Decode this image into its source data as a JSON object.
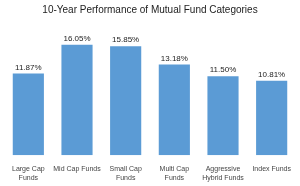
{
  "chart_data": {
    "type": "bar",
    "title": "10-Year Performance of Mutual Fund Categories",
    "categories": [
      "Large Cap\nFunds",
      "Mid Cap Funds",
      "Small Cap\nFunds",
      "Multi Cap\nFunds",
      "Aggressive\nHybrid Funds",
      "Index Funds"
    ],
    "values": [
      11.87,
      16.05,
      15.85,
      13.18,
      11.5,
      10.81
    ],
    "value_labels": [
      "11.87%",
      "16.05%",
      "15.85%",
      "13.18%",
      "11.50%",
      "10.81%"
    ],
    "data_labels": true,
    "color": "#5B9BD5",
    "ylim": [
      0,
      18.5
    ],
    "grid": false,
    "tick_labels": "x"
  }
}
